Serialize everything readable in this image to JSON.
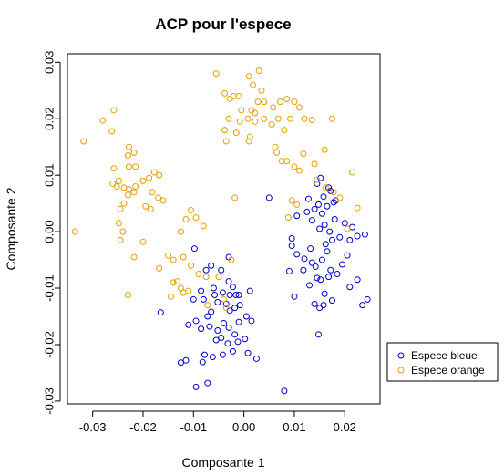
{
  "chart_data": {
    "type": "scatter",
    "title": "ACP pour l'espece",
    "xlabel": "Composante 1",
    "ylabel": "Composante 2",
    "xlim": [
      -0.035,
      0.027
    ],
    "ylim": [
      -0.0305,
      0.0315
    ],
    "xticks": [
      -0.03,
      -0.02,
      -0.01,
      0.0,
      0.01,
      0.02
    ],
    "xtick_labels": [
      "-0.03",
      "-0.02",
      "-0.01",
      "0.00",
      "0.01",
      "0.02"
    ],
    "yticks": [
      -0.03,
      -0.02,
      -0.01,
      0.0,
      0.01,
      0.02,
      0.03
    ],
    "ytick_labels": [
      "-0.03",
      "-0.02",
      "-0.01",
      "0.00",
      "0.01",
      "0.02",
      "0.03"
    ],
    "grid": false,
    "marker": "open-circle",
    "legend": {
      "placement": "right",
      "entries": [
        "Espece bleue",
        "Espece orange"
      ]
    },
    "series": [
      {
        "name": "Espece bleue",
        "color": "#0000CD",
        "points": [
          [
            -0.0095,
            -0.0275
          ],
          [
            -0.0072,
            -0.0268
          ],
          [
            -0.0125,
            -0.0232
          ],
          [
            -0.0115,
            -0.0228
          ],
          [
            -0.0082,
            -0.0231
          ],
          [
            -0.0062,
            -0.0222
          ],
          [
            -0.0078,
            -0.0218
          ],
          [
            -0.0042,
            -0.0218
          ],
          [
            -0.0032,
            -0.0198
          ],
          [
            -0.0045,
            -0.0188
          ],
          [
            -0.0055,
            -0.0192
          ],
          [
            -0.0022,
            -0.0212
          ],
          [
            -0.0012,
            -0.0195
          ],
          [
            0.0008,
            -0.0215
          ],
          [
            0.0025,
            -0.0225
          ],
          [
            0.0002,
            -0.019
          ],
          [
            -0.0018,
            -0.0182
          ],
          [
            -0.0052,
            -0.0175
          ],
          [
            -0.0068,
            -0.0168
          ],
          [
            -0.0085,
            -0.0172
          ],
          [
            -0.0095,
            -0.0158
          ],
          [
            -0.011,
            -0.0165
          ],
          [
            -0.0072,
            -0.015
          ],
          [
            -0.0065,
            -0.0142
          ],
          [
            -0.004,
            -0.0162
          ],
          [
            -0.003,
            -0.017
          ],
          [
            -0.001,
            -0.016
          ],
          [
            0.0005,
            -0.015
          ],
          [
            0.0015,
            -0.0158
          ],
          [
            -0.0028,
            -0.014
          ],
          [
            -0.0018,
            -0.0135
          ],
          [
            -0.0008,
            -0.013
          ],
          [
            -0.0035,
            -0.0128
          ],
          [
            -0.0052,
            -0.0125
          ],
          [
            -0.008,
            -0.012
          ],
          [
            -0.01,
            -0.012
          ],
          [
            -0.0085,
            -0.0105
          ],
          [
            -0.006,
            -0.01
          ],
          [
            -0.0042,
            -0.0108
          ],
          [
            -0.0022,
            -0.0098
          ],
          [
            -0.001,
            -0.0112
          ],
          [
            0.0012,
            -0.0105
          ],
          [
            -0.003,
            -0.0088
          ],
          [
            -0.0045,
            -0.0068
          ],
          [
            -0.0075,
            -0.0068
          ],
          [
            -0.0065,
            -0.006
          ],
          [
            -0.003,
            -0.0045
          ],
          [
            -0.0058,
            -0.0112
          ],
          [
            -0.0028,
            -0.0112
          ],
          [
            -0.0016,
            -0.0112
          ],
          [
            -0.0098,
            -0.003
          ],
          [
            -0.0165,
            -0.0143
          ],
          [
            0.005,
            0.006
          ],
          [
            0.008,
            -0.0282
          ],
          [
            0.009,
            -0.007
          ],
          [
            0.01,
            -0.0115
          ],
          [
            0.0118,
            -0.0068
          ],
          [
            0.012,
            -0.0048
          ],
          [
            0.0095,
            -0.0025
          ],
          [
            0.0105,
            -0.004
          ],
          [
            0.0135,
            -0.0055
          ],
          [
            0.0142,
            -0.0062
          ],
          [
            0.0155,
            -0.005
          ],
          [
            0.0165,
            -0.0035
          ],
          [
            0.0145,
            -0.0082
          ],
          [
            0.013,
            -0.0095
          ],
          [
            0.0152,
            -0.0085
          ],
          [
            0.0168,
            -0.008
          ],
          [
            0.0172,
            -0.0068
          ],
          [
            0.0185,
            -0.0075
          ],
          [
            0.0195,
            -0.0058
          ],
          [
            0.0205,
            -0.0042
          ],
          [
            0.021,
            -0.0098
          ],
          [
            0.0225,
            -0.0085
          ],
          [
            0.0235,
            -0.013
          ],
          [
            0.0245,
            -0.012
          ],
          [
            0.0175,
            -0.0122
          ],
          [
            0.016,
            -0.011
          ],
          [
            0.014,
            -0.0128
          ],
          [
            0.015,
            -0.0135
          ],
          [
            0.0158,
            -0.013
          ],
          [
            0.0148,
            -0.0182
          ],
          [
            0.0162,
            -0.0022
          ],
          [
            0.0175,
            -0.0015
          ],
          [
            0.019,
            -0.001
          ],
          [
            0.021,
            -0.0015
          ],
          [
            0.0225,
            -0.0008
          ],
          [
            0.024,
            -0.0005
          ],
          [
            0.017,
            0.0
          ],
          [
            0.015,
            0.0005
          ],
          [
            0.016,
            0.0012
          ],
          [
            0.018,
            0.0022
          ],
          [
            0.02,
            0.0015
          ],
          [
            0.0215,
            0.0008
          ],
          [
            0.0135,
            0.002
          ],
          [
            0.0125,
            0.0035
          ],
          [
            0.014,
            0.004
          ],
          [
            0.0155,
            0.0032
          ],
          [
            0.0165,
            0.0045
          ],
          [
            0.0178,
            0.0052
          ],
          [
            0.0158,
            0.0062
          ],
          [
            0.0172,
            0.0072
          ],
          [
            0.0145,
            0.0085
          ],
          [
            0.0152,
            0.0095
          ],
          [
            0.0168,
            0.0078
          ],
          [
            0.0182,
            0.0055
          ],
          [
            0.0128,
            0.0058
          ],
          [
            0.0148,
            0.0048
          ],
          [
            0.0105,
            0.0028
          ],
          [
            0.0095,
            -0.0012
          ],
          [
            0.0132,
            -0.003
          ]
        ]
      },
      {
        "name": "Espece orange",
        "color": "#E69F00",
        "points": [
          [
            -0.0335,
            0.0
          ],
          [
            -0.0318,
            0.016
          ],
          [
            -0.028,
            0.0197
          ],
          [
            -0.0258,
            0.0215
          ],
          [
            -0.0262,
            0.0178
          ],
          [
            -0.0228,
            0.015
          ],
          [
            -0.0218,
            0.014
          ],
          [
            -0.023,
            0.0135
          ],
          [
            -0.0215,
            0.0115
          ],
          [
            -0.0228,
            0.0115
          ],
          [
            -0.0258,
            0.0112
          ],
          [
            -0.0248,
            0.009
          ],
          [
            -0.026,
            0.0085
          ],
          [
            -0.0252,
            0.008
          ],
          [
            -0.0238,
            0.0078
          ],
          [
            -0.0228,
            0.0075
          ],
          [
            -0.0215,
            0.008
          ],
          [
            -0.02,
            0.009
          ],
          [
            -0.0188,
            0.0095
          ],
          [
            -0.0178,
            0.0105
          ],
          [
            -0.0168,
            0.01
          ],
          [
            -0.0182,
            0.007
          ],
          [
            -0.017,
            0.006
          ],
          [
            -0.016,
            0.0055
          ],
          [
            -0.0185,
            0.004
          ],
          [
            -0.0195,
            0.0045
          ],
          [
            -0.0218,
            0.007
          ],
          [
            -0.023,
            0.0065
          ],
          [
            -0.0238,
            0.005
          ],
          [
            -0.0245,
            0.004
          ],
          [
            -0.0248,
            0.0015
          ],
          [
            -0.024,
            0.0
          ],
          [
            -0.0245,
            -0.0015
          ],
          [
            -0.0218,
            -0.0045
          ],
          [
            -0.02,
            -0.0018
          ],
          [
            -0.023,
            -0.0112
          ],
          [
            -0.0168,
            -0.0065
          ],
          [
            -0.015,
            -0.0042
          ],
          [
            -0.014,
            -0.005
          ],
          [
            -0.0125,
            0.0
          ],
          [
            -0.0115,
            0.0022
          ],
          [
            -0.0105,
            0.0038
          ],
          [
            -0.0095,
            0.0025
          ],
          [
            -0.008,
            0.001
          ],
          [
            -0.012,
            -0.0045
          ],
          [
            -0.0105,
            -0.006
          ],
          [
            -0.014,
            -0.009
          ],
          [
            -0.0132,
            -0.0088
          ],
          [
            -0.0125,
            -0.01
          ],
          [
            -0.012,
            -0.0108
          ],
          [
            -0.0145,
            -0.0115
          ],
          [
            -0.011,
            -0.0105
          ],
          [
            -0.009,
            -0.0075
          ],
          [
            -0.0075,
            -0.008
          ],
          [
            -0.005,
            -0.008
          ],
          [
            -0.0072,
            -0.013
          ],
          [
            -0.004,
            -0.012
          ],
          [
            -0.0035,
            -0.0135
          ],
          [
            -0.0025,
            -0.005
          ],
          [
            -0.0018,
            0.006
          ],
          [
            -0.0055,
            0.028
          ],
          [
            -0.0038,
            0.0245
          ],
          [
            -0.0028,
            0.0235
          ],
          [
            -0.002,
            0.024
          ],
          [
            0.001,
            0.0275
          ],
          [
            0.0018,
            0.026
          ],
          [
            0.0035,
            0.025
          ],
          [
            0.0028,
            0.023
          ],
          [
            0.0015,
            0.0215
          ],
          [
            0.0008,
            0.02
          ],
          [
            0.0022,
            0.0195
          ],
          [
            -0.0008,
            0.0195
          ],
          [
            -0.001,
            0.024
          ],
          [
            -0.0005,
            0.0215
          ],
          [
            -0.003,
            0.02
          ],
          [
            -0.0038,
            0.018
          ],
          [
            -0.0035,
            0.016
          ],
          [
            -0.0015,
            0.0175
          ],
          [
            0.001,
            0.016
          ],
          [
            0.0012,
            0.0168
          ],
          [
            0.0022,
            0.021
          ],
          [
            0.004,
            0.02
          ],
          [
            0.0055,
            0.019
          ],
          [
            0.0068,
            0.02
          ],
          [
            0.0058,
            0.022
          ],
          [
            0.0072,
            0.023
          ],
          [
            0.0085,
            0.0235
          ],
          [
            0.01,
            0.023
          ],
          [
            0.011,
            0.022
          ],
          [
            0.012,
            0.02
          ],
          [
            0.0092,
            0.02
          ],
          [
            0.008,
            0.018
          ],
          [
            0.0062,
            0.015
          ],
          [
            0.0065,
            0.014
          ],
          [
            0.0075,
            0.0125
          ],
          [
            0.0085,
            0.0125
          ],
          [
            0.01,
            0.0115
          ],
          [
            0.011,
            0.0108
          ],
          [
            0.0118,
            0.0138
          ],
          [
            0.014,
            0.012
          ],
          [
            0.016,
            0.0145
          ],
          [
            0.0175,
            0.02
          ],
          [
            0.0135,
            0.0198
          ],
          [
            0.0145,
            0.0092
          ],
          [
            0.0162,
            0.0078
          ],
          [
            0.0178,
            0.007
          ],
          [
            0.019,
            0.006
          ],
          [
            0.0215,
            0.0105
          ],
          [
            0.0225,
            0.0042
          ],
          [
            0.0205,
            0.0005
          ],
          [
            0.0105,
            0.0048
          ],
          [
            0.0088,
            0.0025
          ],
          [
            0.0095,
            0.0055
          ],
          [
            0.003,
            0.0285
          ],
          [
            0.004,
            0.023
          ]
        ]
      }
    ]
  }
}
